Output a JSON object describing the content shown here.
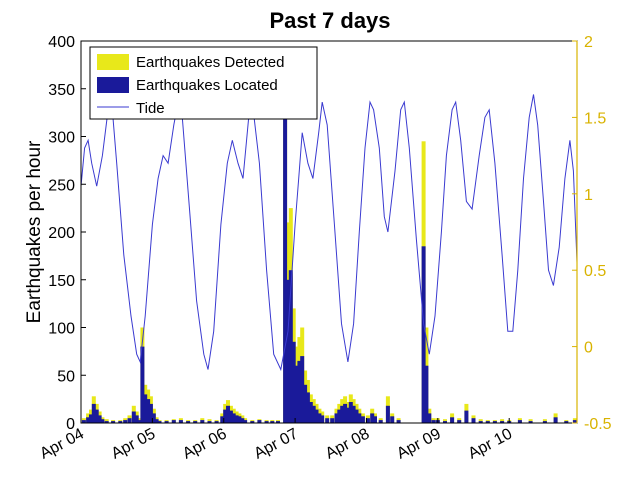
{
  "chart_data": {
    "type": "bar",
    "title": "Past 7 days",
    "ylabel": "Earthquakes per hour",
    "xlabel": "",
    "ylim": [
      0,
      400
    ],
    "y2lim": [
      -0.5,
      2
    ],
    "yticks": [
      "0",
      "50",
      "100",
      "150",
      "200",
      "250",
      "300",
      "350",
      "400"
    ],
    "y2ticks": [
      "-0.5",
      "0",
      "0.5",
      "1",
      "1.5",
      "2"
    ],
    "xticks": [
      {
        "label": "Apr 04",
        "day": 0
      },
      {
        "label": "Apr 05",
        "day": 1
      },
      {
        "label": "Apr 06",
        "day": 2
      },
      {
        "label": "Apr 07",
        "day": 3
      },
      {
        "label": "Apr 08",
        "day": 4
      },
      {
        "label": "Apr 09",
        "day": 5
      },
      {
        "label": "Apr 10",
        "day": 6
      }
    ],
    "xlim_days": [
      0,
      6.95
    ],
    "legend": {
      "placement": "top-left",
      "entries": [
        "Earthquakes Detected",
        "Earthquakes Located",
        "Tide"
      ]
    },
    "colors": {
      "detected": "#e8e81a",
      "located": "#1a1a9a",
      "tide": "#3a3ad0",
      "right_axis": "#d9b300"
    },
    "series": [
      {
        "name": "Earthquakes Detected",
        "points": [
          [
            0.04,
            5
          ],
          [
            0.1,
            10
          ],
          [
            0.14,
            14
          ],
          [
            0.18,
            28
          ],
          [
            0.22,
            20
          ],
          [
            0.26,
            12
          ],
          [
            0.3,
            6
          ],
          [
            0.36,
            4
          ],
          [
            0.45,
            3
          ],
          [
            0.55,
            3
          ],
          [
            0.62,
            5
          ],
          [
            0.68,
            8
          ],
          [
            0.74,
            18
          ],
          [
            0.78,
            12
          ],
          [
            0.82,
            5
          ],
          [
            0.86,
            100
          ],
          [
            0.9,
            40
          ],
          [
            0.94,
            35
          ],
          [
            0.98,
            28
          ],
          [
            1.02,
            15
          ],
          [
            1.06,
            6
          ],
          [
            1.1,
            3
          ],
          [
            1.2,
            3
          ],
          [
            1.3,
            4
          ],
          [
            1.4,
            5
          ],
          [
            1.5,
            3
          ],
          [
            1.6,
            3
          ],
          [
            1.7,
            5
          ],
          [
            1.8,
            4
          ],
          [
            1.9,
            3
          ],
          [
            1.98,
            10
          ],
          [
            2.02,
            20
          ],
          [
            2.06,
            24
          ],
          [
            2.1,
            18
          ],
          [
            2.14,
            15
          ],
          [
            2.18,
            12
          ],
          [
            2.22,
            10
          ],
          [
            2.26,
            8
          ],
          [
            2.3,
            5
          ],
          [
            2.4,
            3
          ],
          [
            2.5,
            4
          ],
          [
            2.6,
            3
          ],
          [
            2.68,
            3
          ],
          [
            2.76,
            3
          ],
          [
            2.86,
            385
          ],
          [
            2.9,
            210
          ],
          [
            2.94,
            225
          ],
          [
            2.98,
            120
          ],
          [
            3.02,
            80
          ],
          [
            3.06,
            90
          ],
          [
            3.1,
            100
          ],
          [
            3.14,
            55
          ],
          [
            3.18,
            45
          ],
          [
            3.22,
            30
          ],
          [
            3.26,
            25
          ],
          [
            3.3,
            20
          ],
          [
            3.34,
            15
          ],
          [
            3.38,
            12
          ],
          [
            3.45,
            8
          ],
          [
            3.52,
            8
          ],
          [
            3.58,
            15
          ],
          [
            3.62,
            20
          ],
          [
            3.66,
            25
          ],
          [
            3.7,
            28
          ],
          [
            3.74,
            22
          ],
          [
            3.78,
            30
          ],
          [
            3.82,
            25
          ],
          [
            3.86,
            20
          ],
          [
            3.9,
            15
          ],
          [
            3.95,
            10
          ],
          [
            4.02,
            8
          ],
          [
            4.08,
            15
          ],
          [
            4.12,
            10
          ],
          [
            4.2,
            5
          ],
          [
            4.3,
            28
          ],
          [
            4.36,
            10
          ],
          [
            4.45,
            5
          ],
          [
            4.8,
            295
          ],
          [
            4.84,
            100
          ],
          [
            4.88,
            15
          ],
          [
            4.94,
            5
          ],
          [
            5.0,
            5
          ],
          [
            5.1,
            4
          ],
          [
            5.2,
            10
          ],
          [
            5.3,
            5
          ],
          [
            5.4,
            20
          ],
          [
            5.5,
            8
          ],
          [
            5.6,
            4
          ],
          [
            5.7,
            3
          ],
          [
            5.8,
            3
          ],
          [
            5.9,
            4
          ],
          [
            6.0,
            3
          ],
          [
            6.15,
            5
          ],
          [
            6.3,
            4
          ],
          [
            6.5,
            4
          ],
          [
            6.65,
            10
          ],
          [
            6.8,
            3
          ],
          [
            6.92,
            5
          ]
        ]
      },
      {
        "name": "Earthquakes Located",
        "points": [
          [
            0.04,
            3
          ],
          [
            0.1,
            6
          ],
          [
            0.14,
            9
          ],
          [
            0.18,
            20
          ],
          [
            0.22,
            14
          ],
          [
            0.26,
            8
          ],
          [
            0.3,
            4
          ],
          [
            0.36,
            2
          ],
          [
            0.45,
            2
          ],
          [
            0.55,
            2
          ],
          [
            0.62,
            3
          ],
          [
            0.68,
            5
          ],
          [
            0.74,
            12
          ],
          [
            0.78,
            8
          ],
          [
            0.82,
            3
          ],
          [
            0.86,
            80
          ],
          [
            0.9,
            30
          ],
          [
            0.94,
            25
          ],
          [
            0.98,
            20
          ],
          [
            1.02,
            10
          ],
          [
            1.06,
            4
          ],
          [
            1.1,
            2
          ],
          [
            1.2,
            2
          ],
          [
            1.3,
            3
          ],
          [
            1.4,
            3
          ],
          [
            1.5,
            2
          ],
          [
            1.6,
            2
          ],
          [
            1.7,
            3
          ],
          [
            1.8,
            2
          ],
          [
            1.9,
            2
          ],
          [
            1.98,
            7
          ],
          [
            2.02,
            14
          ],
          [
            2.06,
            18
          ],
          [
            2.1,
            13
          ],
          [
            2.14,
            10
          ],
          [
            2.18,
            8
          ],
          [
            2.22,
            7
          ],
          [
            2.26,
            5
          ],
          [
            2.3,
            3
          ],
          [
            2.4,
            2
          ],
          [
            2.5,
            3
          ],
          [
            2.6,
            2
          ],
          [
            2.68,
            2
          ],
          [
            2.76,
            2
          ],
          [
            2.86,
            330
          ],
          [
            2.9,
            150
          ],
          [
            2.94,
            160
          ],
          [
            2.98,
            85
          ],
          [
            3.02,
            60
          ],
          [
            3.06,
            65
          ],
          [
            3.1,
            70
          ],
          [
            3.14,
            40
          ],
          [
            3.18,
            32
          ],
          [
            3.22,
            22
          ],
          [
            3.26,
            18
          ],
          [
            3.3,
            14
          ],
          [
            3.34,
            10
          ],
          [
            3.38,
            8
          ],
          [
            3.45,
            5
          ],
          [
            3.52,
            5
          ],
          [
            3.58,
            10
          ],
          [
            3.62,
            14
          ],
          [
            3.66,
            18
          ],
          [
            3.7,
            20
          ],
          [
            3.74,
            16
          ],
          [
            3.78,
            22
          ],
          [
            3.82,
            18
          ],
          [
            3.86,
            14
          ],
          [
            3.9,
            10
          ],
          [
            3.95,
            7
          ],
          [
            4.02,
            5
          ],
          [
            4.08,
            10
          ],
          [
            4.12,
            7
          ],
          [
            4.2,
            3
          ],
          [
            4.3,
            18
          ],
          [
            4.36,
            7
          ],
          [
            4.45,
            3
          ],
          [
            4.8,
            185
          ],
          [
            4.84,
            60
          ],
          [
            4.88,
            10
          ],
          [
            4.94,
            3
          ],
          [
            5.0,
            3
          ],
          [
            5.1,
            2
          ],
          [
            5.2,
            6
          ],
          [
            5.3,
            3
          ],
          [
            5.4,
            13
          ],
          [
            5.5,
            5
          ],
          [
            5.6,
            2
          ],
          [
            5.7,
            2
          ],
          [
            5.8,
            2
          ],
          [
            5.9,
            2
          ],
          [
            6.0,
            2
          ],
          [
            6.15,
            3
          ],
          [
            6.3,
            2
          ],
          [
            6.5,
            2
          ],
          [
            6.65,
            6
          ],
          [
            6.8,
            2
          ],
          [
            6.92,
            3
          ]
        ]
      },
      {
        "name": "Tide",
        "axis": "right",
        "points": [
          [
            0.0,
            1.05
          ],
          [
            0.05,
            1.3
          ],
          [
            0.1,
            1.35
          ],
          [
            0.15,
            1.2
          ],
          [
            0.22,
            1.05
          ],
          [
            0.3,
            1.25
          ],
          [
            0.38,
            1.55
          ],
          [
            0.43,
            1.6
          ],
          [
            0.5,
            1.2
          ],
          [
            0.6,
            0.6
          ],
          [
            0.7,
            0.2
          ],
          [
            0.78,
            -0.05
          ],
          [
            0.83,
            -0.1
          ],
          [
            0.9,
            0.2
          ],
          [
            1.0,
            0.8
          ],
          [
            1.08,
            1.1
          ],
          [
            1.15,
            1.25
          ],
          [
            1.22,
            1.2
          ],
          [
            1.3,
            1.45
          ],
          [
            1.36,
            1.6
          ],
          [
            1.42,
            1.5
          ],
          [
            1.52,
            0.9
          ],
          [
            1.62,
            0.3
          ],
          [
            1.72,
            -0.05
          ],
          [
            1.78,
            -0.15
          ],
          [
            1.86,
            0.1
          ],
          [
            1.96,
            0.8
          ],
          [
            2.05,
            1.2
          ],
          [
            2.12,
            1.35
          ],
          [
            2.2,
            1.2
          ],
          [
            2.27,
            1.1
          ],
          [
            2.35,
            1.5
          ],
          [
            2.4,
            1.6
          ],
          [
            2.5,
            1.2
          ],
          [
            2.6,
            0.5
          ],
          [
            2.7,
            -0.05
          ],
          [
            2.8,
            -0.15
          ],
          [
            2.9,
            0.1
          ],
          [
            3.0,
            0.8
          ],
          [
            3.05,
            1.1
          ],
          [
            3.1,
            1.4
          ],
          [
            3.18,
            1.2
          ],
          [
            3.25,
            1.1
          ],
          [
            3.33,
            1.4
          ],
          [
            3.38,
            1.6
          ],
          [
            3.45,
            1.45
          ],
          [
            3.55,
            0.8
          ],
          [
            3.65,
            0.15
          ],
          [
            3.74,
            -0.1
          ],
          [
            3.82,
            0.15
          ],
          [
            3.9,
            0.75
          ],
          [
            3.98,
            1.3
          ],
          [
            4.05,
            1.6
          ],
          [
            4.1,
            1.55
          ],
          [
            4.18,
            1.3
          ],
          [
            4.25,
            0.85
          ],
          [
            4.3,
            0.75
          ],
          [
            4.4,
            1.15
          ],
          [
            4.48,
            1.55
          ],
          [
            4.53,
            1.6
          ],
          [
            4.6,
            1.3
          ],
          [
            4.7,
            0.7
          ],
          [
            4.8,
            0.15
          ],
          [
            4.88,
            -0.05
          ],
          [
            4.96,
            0.2
          ],
          [
            5.05,
            0.75
          ],
          [
            5.12,
            1.25
          ],
          [
            5.2,
            1.55
          ],
          [
            5.25,
            1.6
          ],
          [
            5.32,
            1.35
          ],
          [
            5.4,
            0.95
          ],
          [
            5.48,
            0.9
          ],
          [
            5.58,
            1.25
          ],
          [
            5.66,
            1.5
          ],
          [
            5.72,
            1.55
          ],
          [
            5.8,
            1.2
          ],
          [
            5.9,
            0.6
          ],
          [
            5.98,
            0.1
          ],
          [
            6.05,
            0.1
          ],
          [
            6.12,
            0.5
          ],
          [
            6.2,
            1.1
          ],
          [
            6.28,
            1.5
          ],
          [
            6.34,
            1.65
          ],
          [
            6.4,
            1.45
          ],
          [
            6.48,
            0.95
          ],
          [
            6.55,
            0.5
          ],
          [
            6.62,
            0.4
          ],
          [
            6.7,
            0.65
          ],
          [
            6.78,
            1.1
          ],
          [
            6.85,
            1.35
          ],
          [
            6.9,
            1.15
          ],
          [
            6.95,
            0.55
          ]
        ]
      }
    ]
  }
}
